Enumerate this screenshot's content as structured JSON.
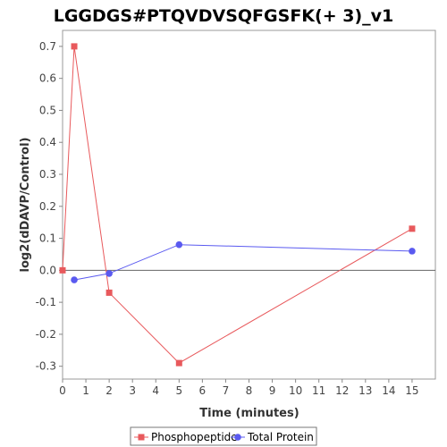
{
  "chart_data": {
    "type": "line",
    "title": "LGGDGS#PTQVDVSQFGSFK(+ 3)_v1",
    "xlabel": "Time (minutes)",
    "ylabel": "log2(dDAVP/Control)",
    "xlim": [
      0,
      16
    ],
    "ylim": [
      -0.34,
      0.75
    ],
    "x_ticks": [
      "0",
      "1",
      "2",
      "3",
      "4",
      "5",
      "6",
      "7",
      "8",
      "9",
      "10",
      "11",
      "12",
      "13",
      "14",
      "15"
    ],
    "y_ticks": [
      "-0.3",
      "-0.2",
      "-0.1",
      "0.0",
      "0.1",
      "0.2",
      "0.3",
      "0.4",
      "0.5",
      "0.6",
      "0.7"
    ],
    "grid": false,
    "zero_line": true,
    "legend_position": "bottom",
    "series": [
      {
        "name": "Phosphopeptide",
        "color": "#e8595c",
        "marker": "square",
        "x": [
          0,
          0.5,
          2,
          5,
          15
        ],
        "y": [
          0.0,
          0.7,
          -0.07,
          -0.29,
          0.13
        ]
      },
      {
        "name": "Total Protein",
        "color": "#5a5af0",
        "marker": "circle",
        "x": [
          0.5,
          2,
          5,
          15
        ],
        "y": [
          -0.03,
          -0.01,
          0.08,
          0.06
        ]
      }
    ]
  }
}
